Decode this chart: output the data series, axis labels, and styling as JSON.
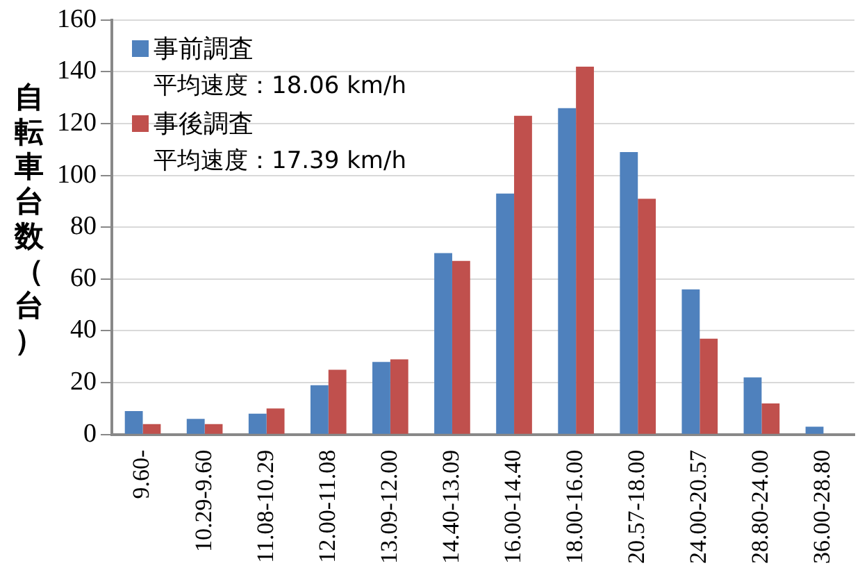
{
  "chart_data": {
    "type": "bar",
    "ylabel": "自転車台数（台）",
    "categories": [
      "9.60-",
      "10.29-9.60",
      "11.08-10.29",
      "12.00-11.08",
      "13.09-12.00",
      "14.40-13.09",
      "16.00-14.40",
      "18.00-16.00",
      "20.57-18.00",
      "24.00-20.57",
      "28.80-24.00",
      "36.00-28.80"
    ],
    "series": [
      {
        "name": "事前調査",
        "color": "#4f81bd",
        "values": [
          9,
          6,
          8,
          19,
          28,
          70,
          93,
          126,
          109,
          56,
          22,
          3
        ]
      },
      {
        "name": "事後調査",
        "color": "#c0504d",
        "values": [
          4,
          4,
          10,
          25,
          29,
          67,
          123,
          142,
          91,
          37,
          12,
          0
        ]
      }
    ],
    "annotations": [
      "平均速度：18.06 km/h",
      "平均速度：17.39 km/h"
    ],
    "ylim": [
      0,
      160
    ],
    "yticks": [
      0,
      20,
      40,
      60,
      80,
      100,
      120,
      140,
      160
    ],
    "grid": "y",
    "legend": "top left"
  }
}
